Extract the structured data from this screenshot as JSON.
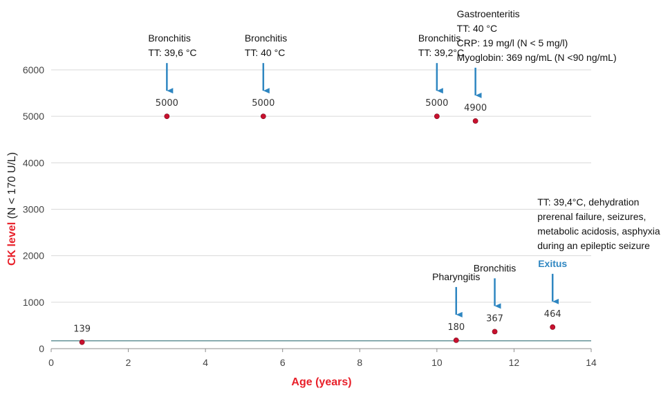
{
  "chart_data": {
    "type": "scatter",
    "xlabel": "Age (years)",
    "ylabel_main": "CK level",
    "ylabel_sub": " (N < 170 U/L)",
    "xlim": [
      0,
      14
    ],
    "ylim": [
      0,
      6000
    ],
    "xticks": [
      0,
      2,
      4,
      6,
      8,
      10,
      12,
      14
    ],
    "yticks": [
      0,
      1000,
      2000,
      3000,
      4000,
      5000,
      6000
    ],
    "grid": true,
    "reference_line": {
      "value": 170,
      "description": "normal upper limit"
    },
    "points": [
      {
        "x": 0.8,
        "y": 139,
        "label": "139"
      },
      {
        "x": 3.0,
        "y": 5000,
        "label": "5000"
      },
      {
        "x": 5.5,
        "y": 5000,
        "label": "5000"
      },
      {
        "x": 10.0,
        "y": 5000,
        "label": "5000"
      },
      {
        "x": 11.0,
        "y": 4900,
        "label": "4900"
      },
      {
        "x": 10.5,
        "y": 180,
        "label": "180"
      },
      {
        "x": 11.5,
        "y": 367,
        "label": "367"
      },
      {
        "x": 13.0,
        "y": 464,
        "label": "464"
      }
    ],
    "annotations": [
      {
        "x": 3.0,
        "y": 5000,
        "lines": [
          "Bronchitis",
          "TT: 39,6 °C"
        ],
        "align": "left"
      },
      {
        "x": 5.5,
        "y": 5000,
        "lines": [
          "Bronchitis",
          " TT: 40 °C"
        ],
        "align": "left"
      },
      {
        "x": 10.0,
        "y": 5000,
        "lines": [
          "Bronchitis",
          "TT: 39,2°C"
        ],
        "align": "left"
      },
      {
        "x": 11.0,
        "y": 4900,
        "lines": [
          "Gastroenteritis",
          "TT: 40 °C",
          "CRP: 19 mg/l (N < 5 mg/l)",
          "Myoglobin: 369 ng/mL (N <90 ng/mL)"
        ],
        "align": "left"
      },
      {
        "x": 10.5,
        "y": 180,
        "lines": [
          "Pharyngitis"
        ],
        "align": "center"
      },
      {
        "x": 11.5,
        "y": 367,
        "lines": [
          "Bronchitis"
        ],
        "align": "center"
      },
      {
        "x": 13.0,
        "y": 464,
        "lines": [
          "Exitus"
        ],
        "align": "center",
        "highlight": true
      },
      {
        "x": 13.0,
        "y": 2900,
        "lines": [
          "TT: 39,4°C, dehydration",
          "prerenal failure, seizures,",
          "metabolic acidosis, asphyxia",
          "during an epileptic seizure"
        ],
        "align": "left",
        "no_arrow": true
      }
    ],
    "colors": {
      "point": "#c8102e",
      "arrow": "#2e86c1",
      "axis_title": "#e8202a",
      "exitus": "#2e86c1",
      "reference_line": "#5f8f94",
      "grid": "#d9d9d9"
    }
  }
}
